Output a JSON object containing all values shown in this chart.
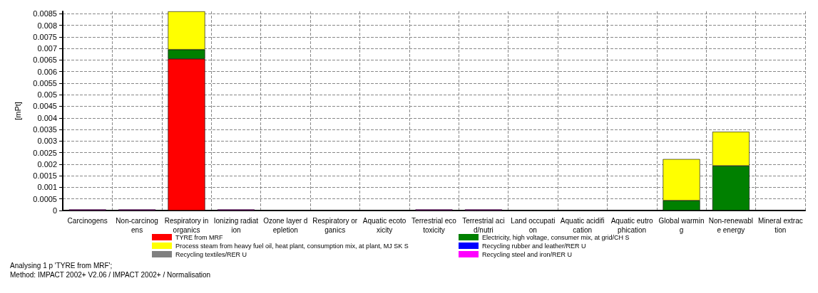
{
  "chart_data": {
    "type": "bar",
    "stacked": true,
    "ylabel": "[mPt]",
    "categories": [
      "Carcinogens",
      "Non-carcinogens",
      "Respiratory inorganics",
      "Ionizing radiation",
      "Ozone layer depletion",
      "Respiratory organics",
      "Aquatic ecotoxicity",
      "Terrestrial ecotoxicity",
      "Terrestrial acid/nutri",
      "Land occupation",
      "Aquatic acidification",
      "Aquatic eutrophication",
      "Global warming",
      "Non-renewable energy",
      "Mineral extraction"
    ],
    "series": [
      {
        "name": "TYRE from MRF",
        "color": "#ff0000",
        "values": [
          null,
          null,
          0.00655,
          null,
          null,
          null,
          null,
          null,
          null,
          null,
          null,
          null,
          null,
          null,
          null
        ]
      },
      {
        "name": "Electricity, high voltage, consumer mix, at grid/CH S",
        "color": "#008000",
        "values": [
          null,
          null,
          0.0004,
          null,
          null,
          null,
          null,
          null,
          null,
          null,
          null,
          null,
          0.00043,
          0.00193,
          null
        ]
      },
      {
        "name": "Process steam from heavy fuel oil, heat plant, consumption mix, at plant, MJ SK S",
        "color": "#ffff00",
        "values": [
          null,
          null,
          0.00165,
          null,
          null,
          null,
          null,
          null,
          null,
          null,
          null,
          null,
          0.00179,
          0.00147,
          null
        ]
      },
      {
        "name": "Recycling rubber and leather/RER U",
        "color": "#0000ff",
        "values": [
          null,
          null,
          null,
          null,
          null,
          null,
          null,
          null,
          null,
          null,
          null,
          null,
          null,
          null,
          null
        ]
      },
      {
        "name": "Recycling textiles/RER U",
        "color": "#808080",
        "values": [
          null,
          null,
          null,
          null,
          null,
          null,
          null,
          null,
          null,
          null,
          null,
          null,
          null,
          null,
          null
        ]
      },
      {
        "name": "Recycling steel and iron/RER U",
        "color": "#ff00ff",
        "values": [
          5e-05,
          5e-05,
          null,
          5e-05,
          null,
          null,
          null,
          5e-05,
          5e-05,
          null,
          null,
          null,
          null,
          null,
          null
        ]
      }
    ],
    "ylim": [
      0,
      0.0086
    ],
    "yticks": [
      0,
      0.0005,
      0.001,
      0.0015,
      0.002,
      0.0025,
      0.003,
      0.0035,
      0.004,
      0.0045,
      0.005,
      0.0055,
      0.006,
      0.0065,
      0.007,
      0.0075,
      0.008,
      0.0085
    ],
    "grid": true,
    "legend": "bottom",
    "annotations": [
      "Analysing 1 p 'TYRE from MRF';",
      "Method: IMPACT 2002+ V2.06 / IMPACT 2002+ / Normalisation"
    ]
  }
}
